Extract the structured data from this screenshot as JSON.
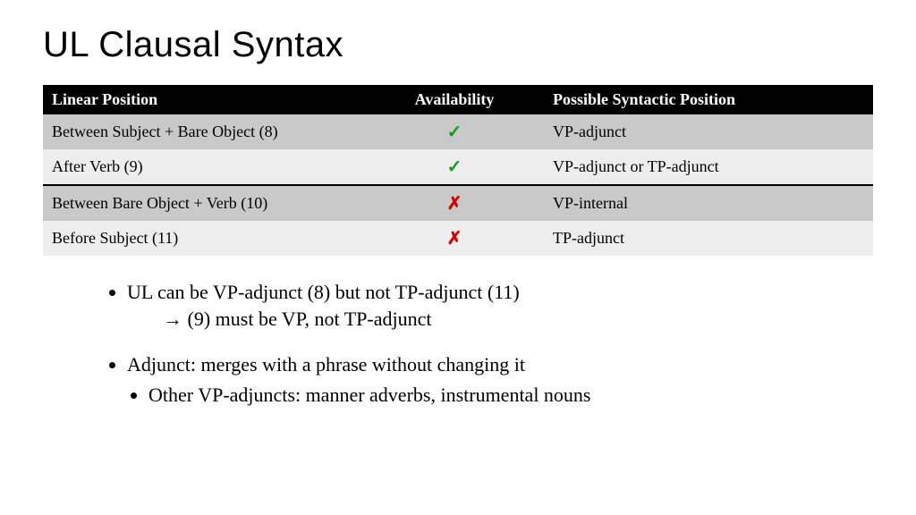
{
  "title": "UL Clausal Syntax",
  "table": {
    "columns": [
      "Linear Position",
      "Availability",
      "Possible Syntactic Position"
    ],
    "rows": [
      {
        "position": "Between Subject + Bare Object (8)",
        "avail": "check",
        "syntactic": "VP-adjunct",
        "shade": "dark",
        "sep": false
      },
      {
        "position": "After Verb (9)",
        "avail": "check",
        "syntactic": "VP-adjunct or TP-adjunct",
        "shade": "light",
        "sep": false
      },
      {
        "position": "Between Bare Object + Verb (10)",
        "avail": "cross",
        "syntactic": "VP-internal",
        "shade": "dark",
        "sep": true
      },
      {
        "position": "Before Subject (11)",
        "avail": "cross",
        "syntactic": "TP-adjunct",
        "shade": "light",
        "sep": false
      }
    ],
    "header_bg": "#000000",
    "header_fg": "#ffffff",
    "row_dark_bg": "#c9c9c9",
    "row_light_bg": "#ededed",
    "check_color": "#1a9a1a",
    "cross_color": "#d40000",
    "font_size": 18
  },
  "icons": {
    "check": "✓",
    "cross": "✗",
    "arrow": "→"
  },
  "bullets": {
    "item1_line1": "UL can be VP-adjunct (8) but not TP-adjunct (11)",
    "item1_line2": " (9) must be VP, not TP-adjunct",
    "item2": "Adjunct: merges with a phrase without changing it",
    "item2_sub": "Other VP-adjuncts: manner adverbs, instrumental nouns"
  },
  "colors": {
    "bg": "#ffffff",
    "text": "#000000"
  }
}
